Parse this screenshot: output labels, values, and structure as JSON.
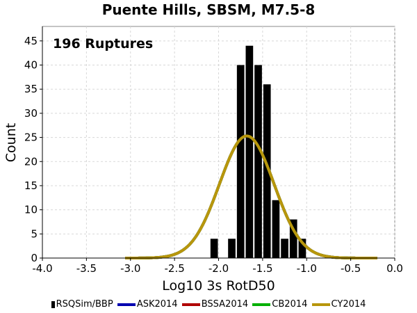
{
  "chart_data": {
    "type": "bar",
    "title": "Puente Hills, SBSM, M7.5-8",
    "annotation": "196 Ruptures",
    "xlabel": "Log10 3s RotD50",
    "ylabel": "Count",
    "xlim": [
      -4.0,
      0.0
    ],
    "ylim": [
      0,
      48
    ],
    "xticks": [
      "-4.0",
      "-3.5",
      "-3.0",
      "-2.5",
      "-2.0",
      "-1.5",
      "-1.0",
      "-0.5",
      "0.0"
    ],
    "xtick_values": [
      -4.0,
      -3.5,
      -3.0,
      -2.5,
      -2.0,
      -1.5,
      -1.0,
      -0.5,
      0.0
    ],
    "yticks": [
      "0",
      "5",
      "10",
      "15",
      "20",
      "25",
      "30",
      "35",
      "40",
      "45"
    ],
    "ytick_values": [
      0,
      5,
      10,
      15,
      20,
      25,
      30,
      35,
      40,
      45
    ],
    "grid": true,
    "legend_position": "bottom",
    "histogram": {
      "name": "RSQSim/BBP",
      "color": "#000000",
      "bin_width": 0.1,
      "bin_centers": [
        -2.05,
        -1.95,
        -1.85,
        -1.75,
        -1.65,
        -1.55,
        -1.45,
        -1.35,
        -1.25,
        -1.15,
        -1.05
      ],
      "counts": [
        4,
        0,
        4,
        40,
        44,
        40,
        36,
        12,
        4,
        8,
        4
      ]
    },
    "curves": [
      {
        "name": "ASK2014",
        "color": "#0000b0",
        "mean": -1.68,
        "sigma": 0.31,
        "peak": 25.3
      },
      {
        "name": "BSSA2014",
        "color": "#b00000",
        "mean": -1.68,
        "sigma": 0.31,
        "peak": 25.3
      },
      {
        "name": "CB2014",
        "color": "#00b000",
        "mean": -1.68,
        "sigma": 0.31,
        "peak": 25.3
      },
      {
        "name": "CY2014",
        "color": "#b8960c",
        "mean": -1.68,
        "sigma": 0.31,
        "peak": 25.3
      }
    ],
    "curve_x_range": [
      -3.06,
      -0.2
    ]
  }
}
